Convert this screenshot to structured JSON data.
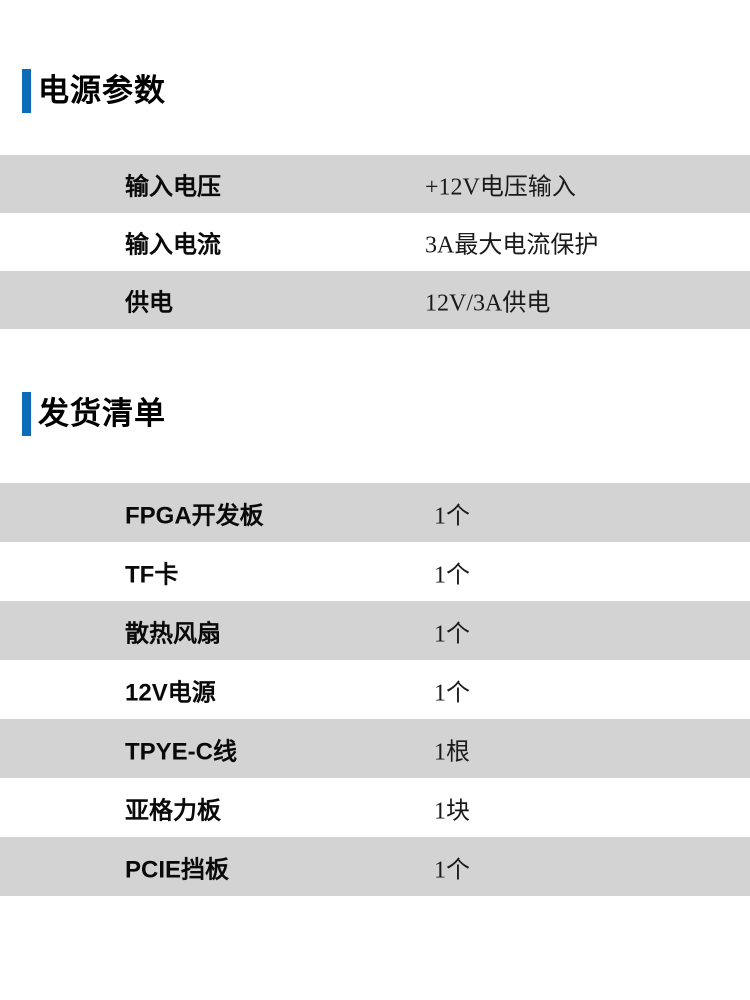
{
  "accent_color": "#0d6cb7",
  "row_stripe_color": "#d3d3d3",
  "sections": [
    {
      "title": "电源参数",
      "rows": [
        {
          "label": "输入电压",
          "value": "+12V电压输入"
        },
        {
          "label": "输入电流",
          "value": "3A最大电流保护"
        },
        {
          "label": "供电",
          "value": "12V/3A供电"
        }
      ]
    },
    {
      "title": "发货清单",
      "rows": [
        {
          "label": "FPGA开发板",
          "value": "1个"
        },
        {
          "label": "TF卡",
          "value": "1个"
        },
        {
          "label": "散热风扇",
          "value": "1个"
        },
        {
          "label": "12V电源",
          "value": "1个"
        },
        {
          "label": "TPYE-C线",
          "value": "1根"
        },
        {
          "label": "亚格力板",
          "value": "1块"
        },
        {
          "label": "PCIE挡板",
          "value": "1个"
        }
      ]
    }
  ]
}
